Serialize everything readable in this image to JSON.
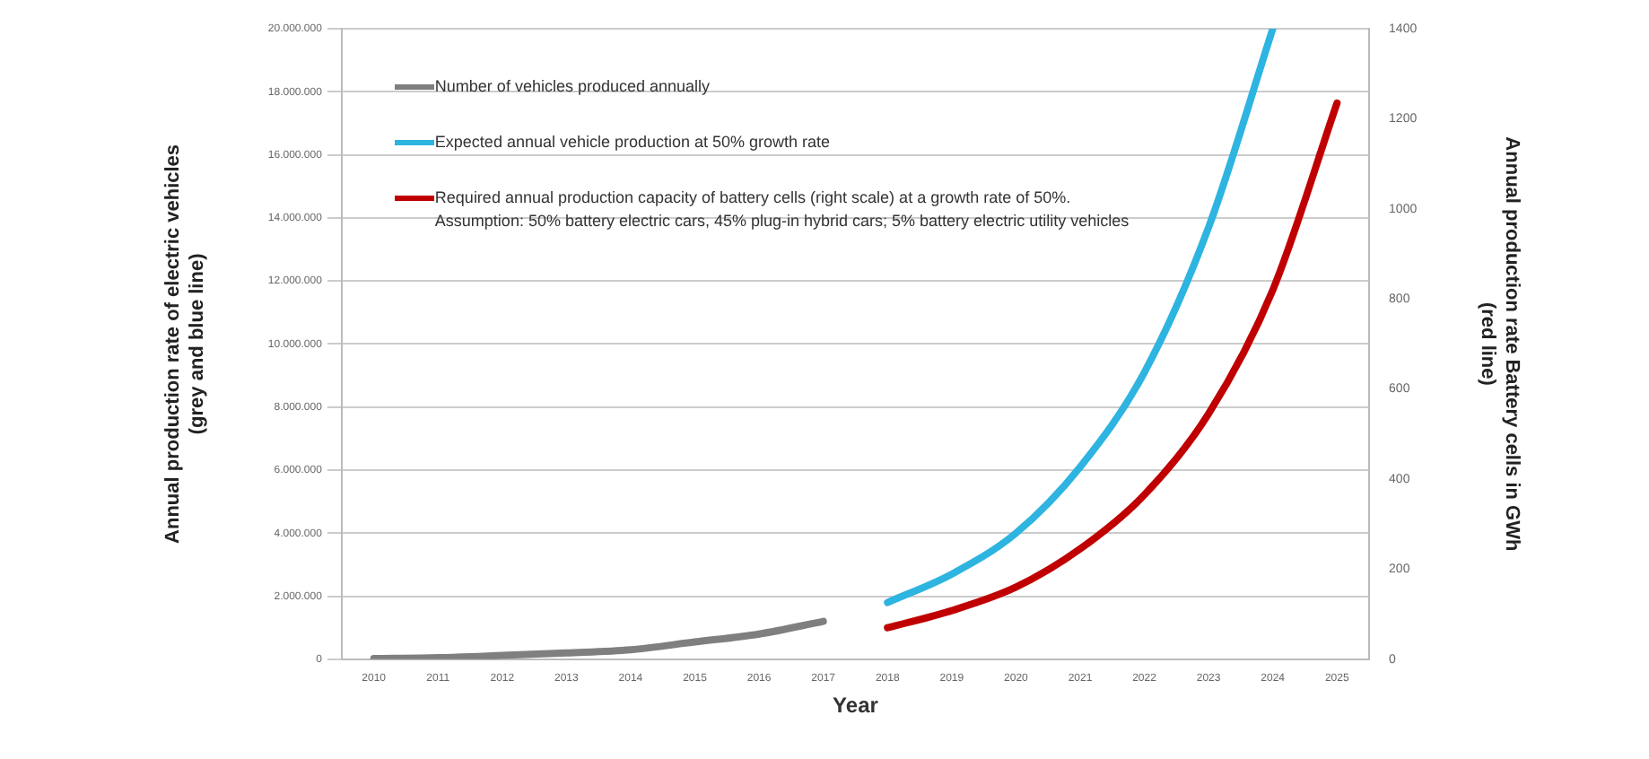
{
  "chart_data": {
    "type": "line",
    "xlabel": "Year",
    "ylabel": "Annual production rate of electric vehicles\n(grey and blue line)",
    "y2label": "Annual production rate Battery cells in GWh\n(red line)",
    "categories": [
      "2010",
      "2011",
      "2012",
      "2013",
      "2014",
      "2015",
      "2016",
      "2017",
      "2018",
      "2019",
      "2020",
      "2021",
      "2022",
      "2023",
      "2024",
      "2025"
    ],
    "series": [
      {
        "name": "Number of vehicles produced annually",
        "color": "#7f7f7f",
        "values": [
          20000,
          50000,
          120000,
          200000,
          300000,
          550000,
          800000,
          1200000,
          null,
          null,
          null,
          null,
          null,
          null,
          null,
          null
        ]
      },
      {
        "name": "Expected annual vehicle production at 50% growth rate",
        "color": "#2eb4e0",
        "values": [
          null,
          null,
          null,
          null,
          null,
          null,
          null,
          null,
          1800000,
          2700000,
          4000000,
          6100000,
          9100000,
          13700000,
          20000000,
          null
        ]
      },
      {
        "name": "Required annual production capacity of battery cells (right scale) at a growth rate of 50%.\nAssumption: 50% battery electric cars, 45% plug-in hybrid cars; 5% battery electric utility vehicles",
        "color": "#c00000",
        "axis": "y2",
        "values": [
          null,
          null,
          null,
          null,
          null,
          null,
          null,
          null,
          70,
          108,
          160,
          245,
          365,
          545,
          820,
          1235
        ]
      }
    ],
    "ylim": [
      0,
      20000000
    ],
    "yticks": [
      {
        "value": 0,
        "label": "0"
      },
      {
        "value": 2000000,
        "label": "2.000.000"
      },
      {
        "value": 4000000,
        "label": "4.000.000"
      },
      {
        "value": 6000000,
        "label": "6.000.000"
      },
      {
        "value": 8000000,
        "label": "8.000.000"
      },
      {
        "value": 10000000,
        "label": "10.000.000"
      },
      {
        "value": 12000000,
        "label": "12.000.000"
      },
      {
        "value": 14000000,
        "label": "14.000.000"
      },
      {
        "value": 16000000,
        "label": "16.000.000"
      },
      {
        "value": 18000000,
        "label": "18.000.000"
      },
      {
        "value": 20000000,
        "label": "20.000.000"
      }
    ],
    "y2lim": [
      0,
      1400
    ],
    "y2ticks": [
      0,
      200,
      400,
      600,
      800,
      1000,
      1200,
      1400
    ],
    "grid": "y",
    "legend": "top left",
    "marker": "none",
    "line_style": "solid"
  }
}
